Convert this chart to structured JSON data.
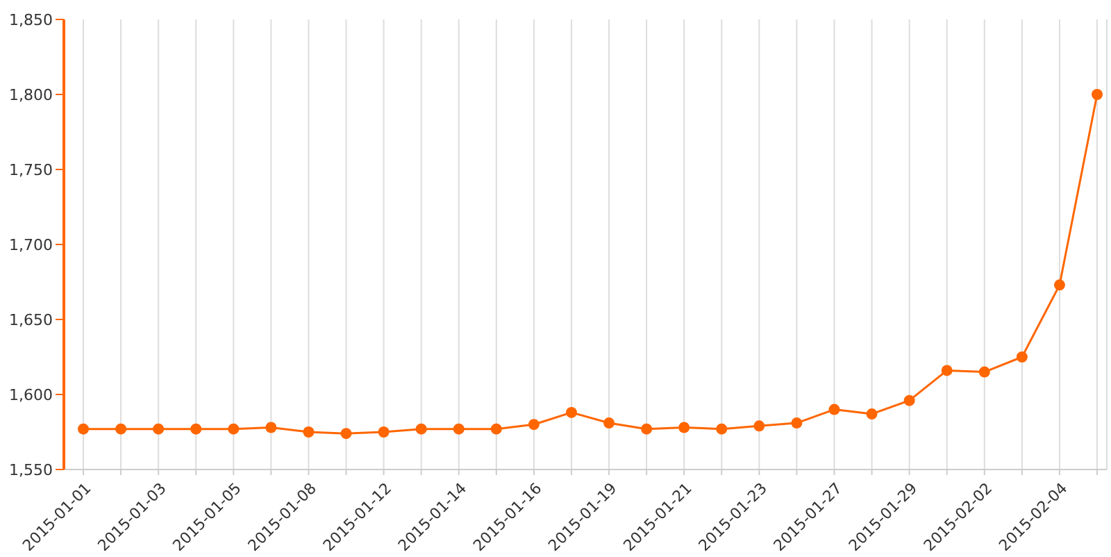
{
  "chart_data": {
    "type": "line",
    "categories": [
      "2015-01-01",
      null,
      "2015-01-03",
      null,
      "2015-01-05",
      null,
      "2015-01-08",
      null,
      "2015-01-12",
      null,
      "2015-01-14",
      null,
      "2015-01-16",
      null,
      "2015-01-19",
      null,
      "2015-01-21",
      null,
      "2015-01-23",
      null,
      "2015-01-27",
      null,
      "2015-01-29",
      null,
      "2015-02-02",
      null,
      "2015-02-04",
      null
    ],
    "series": [
      {
        "color": "#ff6600",
        "values": [
          1577,
          1577,
          1577,
          1577,
          1577,
          1578,
          1575,
          1574,
          1575,
          1577,
          1577,
          1577,
          1580,
          1588,
          1581,
          1577,
          1578,
          1577,
          1579,
          1581,
          1590,
          1587,
          1596,
          1616,
          1615,
          1625,
          1673,
          1800
        ]
      }
    ],
    "ylim": [
      1550,
      1850
    ],
    "yticks": [
      {
        "value": 1550,
        "label": "1,550"
      },
      {
        "value": 1600,
        "label": "1,600"
      },
      {
        "value": 1650,
        "label": "1,650"
      },
      {
        "value": 1700,
        "label": "1,700"
      },
      {
        "value": 1750,
        "label": "1,750"
      },
      {
        "value": 1800,
        "label": "1,800"
      },
      {
        "value": 1850,
        "label": "1,850"
      }
    ],
    "grid": "x",
    "marker": "circle",
    "line_style": "solid"
  }
}
